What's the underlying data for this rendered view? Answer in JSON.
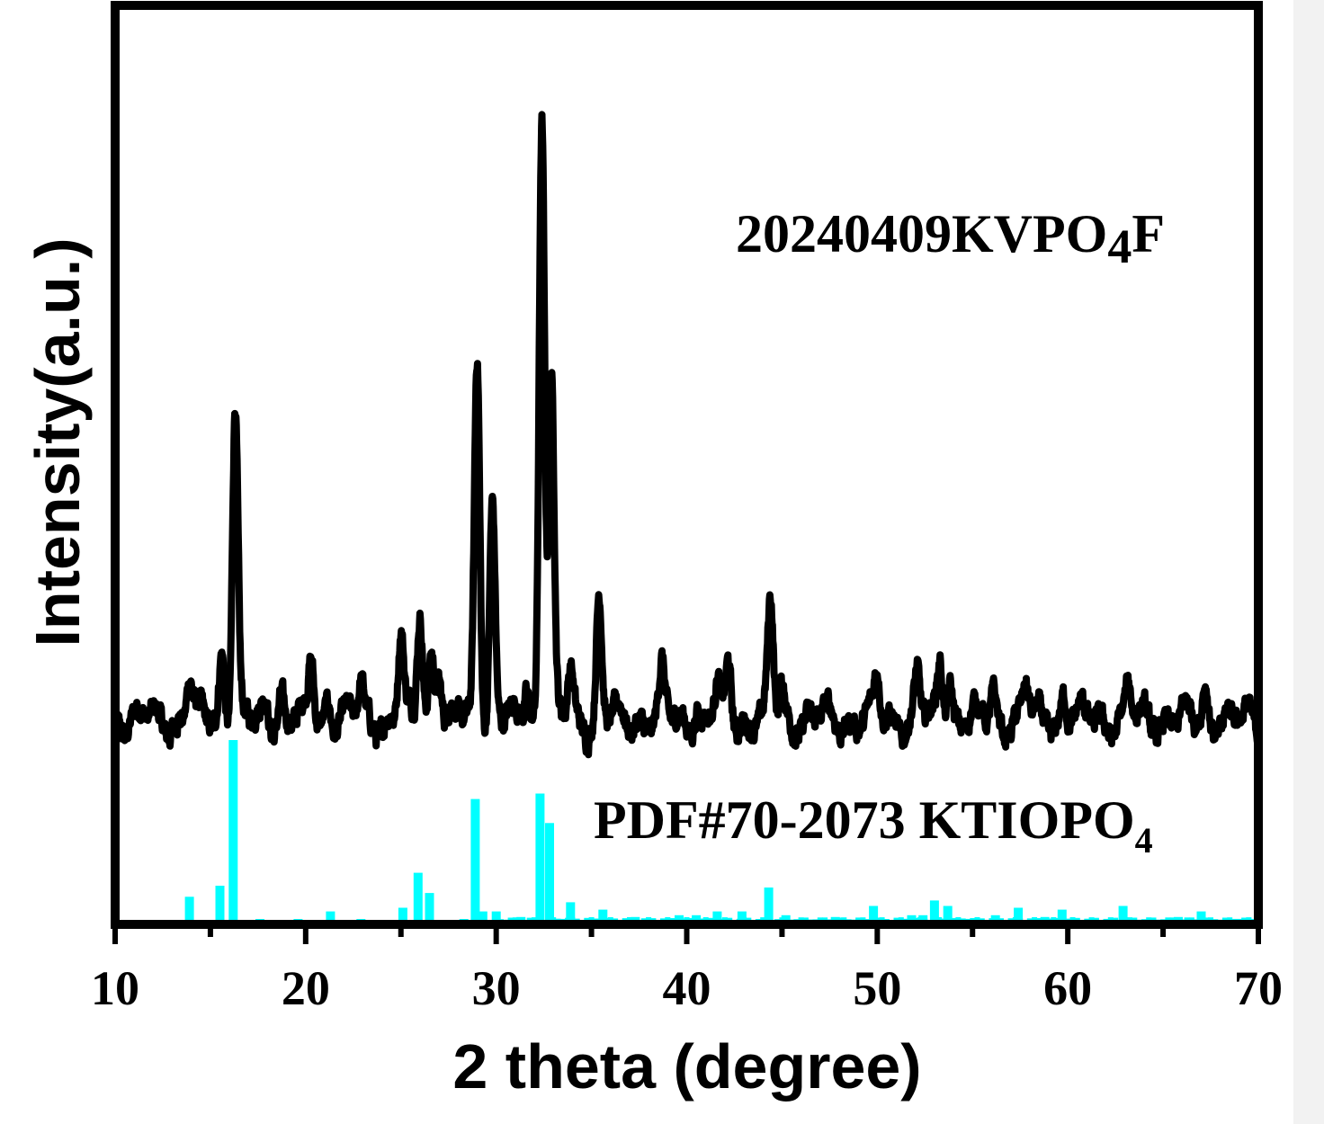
{
  "chart_data": {
    "type": "line",
    "xlabel": "2 theta (degree)",
    "ylabel": "Intensity(a.u.)",
    "xlim": [
      10,
      70
    ],
    "x_ticks": [
      "10",
      "20",
      "30",
      "40",
      "50",
      "60",
      "70"
    ],
    "grid": false,
    "legend": "none",
    "annotations": {
      "sample": {
        "main": "20240409KVPO",
        "sub": "4",
        "tail": "F"
      },
      "reference": {
        "main": "PDF#70-2073 KTIOPO",
        "sub": "4"
      }
    },
    "colors": {
      "pattern": "#000000",
      "reference": "#00ffff",
      "axes": "#000000"
    },
    "series": [
      {
        "type": "line",
        "peaks": [
          [
            13.9,
            0.05
          ],
          [
            15.6,
            0.08
          ],
          [
            16.3,
            0.37
          ],
          [
            17.9,
            0.025
          ],
          [
            18.7,
            0.03
          ],
          [
            20.3,
            0.07
          ],
          [
            21.2,
            0.025
          ],
          [
            22.9,
            0.04
          ],
          [
            25.0,
            0.1
          ],
          [
            26.0,
            0.13
          ],
          [
            26.6,
            0.08
          ],
          [
            27.0,
            0.06
          ],
          [
            29.0,
            0.43
          ],
          [
            29.8,
            0.25
          ],
          [
            31.6,
            0.04
          ],
          [
            32.4,
            0.71
          ],
          [
            32.9,
            0.39
          ],
          [
            33.9,
            0.06
          ],
          [
            35.4,
            0.14
          ],
          [
            38.7,
            0.05
          ],
          [
            40.5,
            0.02
          ],
          [
            41.6,
            0.04
          ],
          [
            42.2,
            0.06
          ],
          [
            44.4,
            0.13
          ],
          [
            45.0,
            0.04
          ],
          [
            50.0,
            0.05
          ],
          [
            52.1,
            0.05
          ],
          [
            53.3,
            0.07
          ],
          [
            53.8,
            0.05
          ],
          [
            56.1,
            0.03
          ],
          [
            57.8,
            0.04
          ],
          [
            59.8,
            0.03
          ],
          [
            63.2,
            0.035
          ],
          [
            67.2,
            0.04
          ]
        ],
        "baseline": 0.0
      },
      {
        "type": "bar",
        "peaks": [
          [
            13.9,
            0.15
          ],
          [
            15.5,
            0.21
          ],
          [
            16.2,
            1.0
          ],
          [
            17.6,
            0.01
          ],
          [
            19.6,
            0.01
          ],
          [
            21.3,
            0.07
          ],
          [
            22.9,
            0.01
          ],
          [
            25.1,
            0.09
          ],
          [
            25.9,
            0.28
          ],
          [
            26.5,
            0.17
          ],
          [
            28.3,
            0.01
          ],
          [
            28.9,
            0.68
          ],
          [
            29.3,
            0.07
          ],
          [
            30.0,
            0.07
          ],
          [
            31.3,
            0.04
          ],
          [
            32.3,
            0.71
          ],
          [
            32.8,
            0.55
          ],
          [
            33.4,
            0.03
          ],
          [
            33.9,
            0.12
          ],
          [
            35.6,
            0.08
          ],
          [
            37.3,
            0.04
          ],
          [
            38.0,
            0.03
          ],
          [
            39.6,
            0.05
          ],
          [
            40.5,
            0.05
          ],
          [
            41.6,
            0.07
          ],
          [
            42.9,
            0.07
          ],
          [
            44.3,
            0.2
          ],
          [
            45.2,
            0.05
          ],
          [
            47.8,
            0.04
          ],
          [
            49.8,
            0.1
          ],
          [
            51.8,
            0.05
          ],
          [
            52.4,
            0.05
          ],
          [
            53.0,
            0.13
          ],
          [
            53.7,
            0.1
          ],
          [
            54.8,
            0.03
          ],
          [
            56.2,
            0.05
          ],
          [
            57.4,
            0.09
          ],
          [
            58.8,
            0.04
          ],
          [
            59.7,
            0.08
          ],
          [
            62.9,
            0.1
          ],
          [
            65.8,
            0.04
          ],
          [
            67.0,
            0.07
          ],
          [
            68.9,
            0.03
          ],
          [
            69.8,
            0.02
          ]
        ]
      }
    ]
  }
}
